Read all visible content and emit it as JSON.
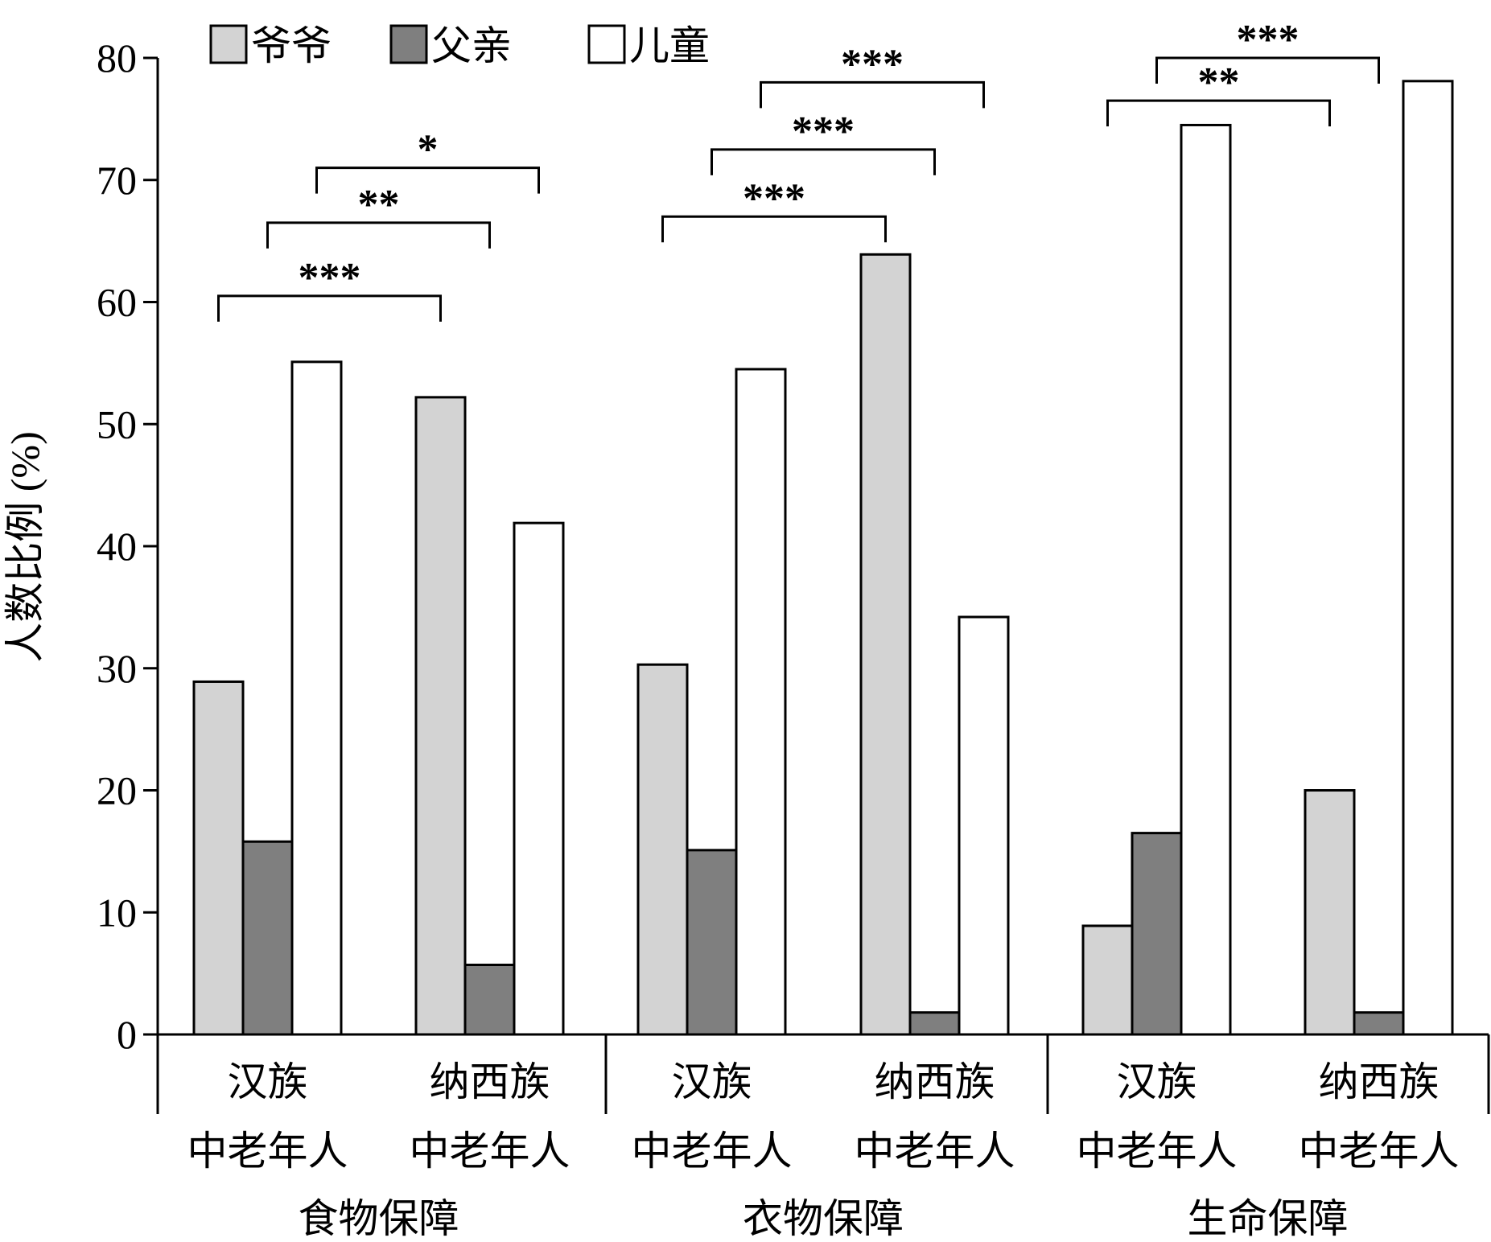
{
  "chart_data": {
    "type": "bar",
    "ylabel": "人数比例 (%)",
    "ylim": [
      0,
      80
    ],
    "yticks": [
      0,
      10,
      20,
      30,
      40,
      50,
      60,
      70,
      80
    ],
    "grid": false,
    "legend_position": "top-left",
    "series": [
      {
        "name": "爷爷",
        "color": "#d3d3d3",
        "values": [
          28.9,
          52.2,
          30.3,
          63.9,
          8.9,
          20.0
        ]
      },
      {
        "name": "父亲",
        "color": "#7f7f7f",
        "values": [
          15.8,
          5.7,
          15.1,
          1.8,
          16.5,
          1.8
        ]
      },
      {
        "name": "儿童",
        "color": "#ffffff",
        "values": [
          55.1,
          41.9,
          54.5,
          34.2,
          74.5,
          78.1
        ]
      }
    ],
    "groups": [
      {
        "name": "食物保障",
        "subgroups": [
          {
            "line1": "汉族",
            "line2": "中老年人"
          },
          {
            "line1": "纳西族",
            "line2": "中老年人"
          }
        ]
      },
      {
        "name": "衣物保障",
        "subgroups": [
          {
            "line1": "汉族",
            "line2": "中老年人"
          },
          {
            "line1": "纳西族",
            "line2": "中老年人"
          }
        ]
      },
      {
        "name": "生命保障",
        "subgroups": [
          {
            "line1": "汉族",
            "line2": "中老年人"
          },
          {
            "line1": "纳西族",
            "line2": "中老年人"
          }
        ]
      }
    ],
    "significance": [
      {
        "from_cluster": 0,
        "from_series": 0,
        "to_cluster": 1,
        "to_series": 0,
        "label": "***",
        "y": 60.5
      },
      {
        "from_cluster": 0,
        "from_series": 1,
        "to_cluster": 1,
        "to_series": 1,
        "label": "**",
        "y": 66.5
      },
      {
        "from_cluster": 0,
        "from_series": 2,
        "to_cluster": 1,
        "to_series": 2,
        "label": "*",
        "y": 71
      },
      {
        "from_cluster": 2,
        "from_series": 0,
        "to_cluster": 3,
        "to_series": 0,
        "label": "***",
        "y": 67
      },
      {
        "from_cluster": 2,
        "from_series": 1,
        "to_cluster": 3,
        "to_series": 1,
        "label": "***",
        "y": 72.5
      },
      {
        "from_cluster": 2,
        "from_series": 2,
        "to_cluster": 3,
        "to_series": 2,
        "label": "***",
        "y": 78
      },
      {
        "from_cluster": 4,
        "from_series": 0,
        "to_cluster": 5,
        "to_series": 0,
        "label": "**",
        "y": 76.5
      },
      {
        "from_cluster": 4,
        "from_series": 1,
        "to_cluster": 5,
        "to_series": 1,
        "label": "***",
        "y": 80
      }
    ]
  }
}
